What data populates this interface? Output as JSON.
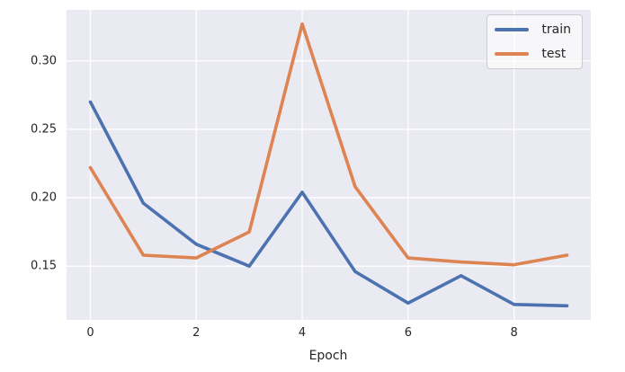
{
  "figure": {
    "background_color": "#ffffff",
    "plot_background_color": "#eaeaf2",
    "grid_color": "#ffffff",
    "text_color": "#262626"
  },
  "chart_data": {
    "type": "line",
    "title": "",
    "xlabel": "Epoch",
    "ylabel": "",
    "x": [
      0,
      1,
      2,
      3,
      4,
      5,
      6,
      7,
      8,
      9
    ],
    "series": [
      {
        "name": "train",
        "color": "#4c72b0",
        "values": [
          0.27,
          0.196,
          0.166,
          0.15,
          0.204,
          0.146,
          0.123,
          0.143,
          0.122,
          0.121
        ]
      },
      {
        "name": "test",
        "color": "#dd8452",
        "values": [
          0.222,
          0.158,
          0.156,
          0.175,
          0.327,
          0.208,
          0.156,
          0.153,
          0.151,
          0.158
        ]
      }
    ],
    "xlim": [
      -0.45,
      9.45
    ],
    "ylim": [
      0.1107,
      0.3373
    ],
    "xticks": [
      0,
      2,
      4,
      6,
      8
    ],
    "xtick_labels": [
      "0",
      "2",
      "4",
      "6",
      "8"
    ],
    "yticks": [
      0.15,
      0.2,
      0.25,
      0.3
    ],
    "ytick_labels": [
      "0.15",
      "0.20",
      "0.25",
      "0.30"
    ],
    "grid": true,
    "line_width": 3.6,
    "legend": {
      "position": "upper right",
      "entries": [
        "train",
        "test"
      ]
    }
  }
}
